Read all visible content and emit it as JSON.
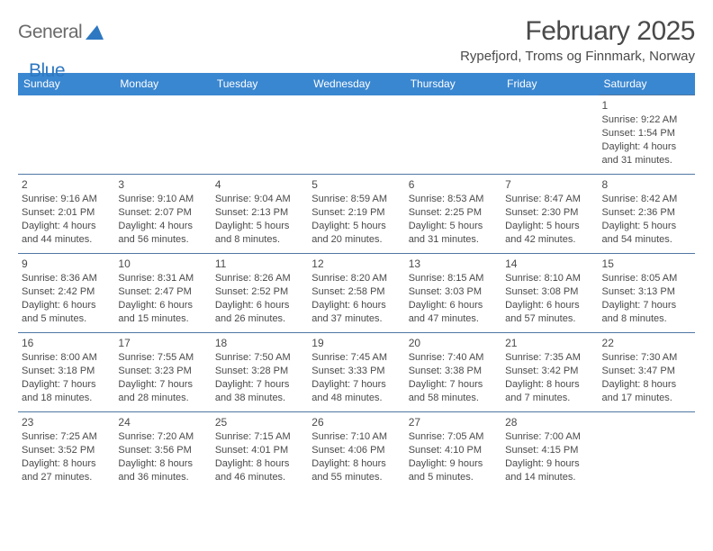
{
  "logo": {
    "text1": "General",
    "text2": "Blue"
  },
  "header": {
    "month_title": "February 2025",
    "location": "Rypefjord, Troms og Finnmark, Norway"
  },
  "colors": {
    "header_bg": "#3a87d1",
    "header_text": "#ffffff",
    "cell_border": "#4f77a4",
    "body_text": "#4a4a4a",
    "logo_gray": "#6a6a6a",
    "logo_blue": "#2e78c2",
    "page_bg": "#ffffff"
  },
  "weekdays": [
    "Sunday",
    "Monday",
    "Tuesday",
    "Wednesday",
    "Thursday",
    "Friday",
    "Saturday"
  ],
  "weeks": [
    [
      null,
      null,
      null,
      null,
      null,
      null,
      {
        "n": "1",
        "sr": "Sunrise: 9:22 AM",
        "ss": "Sunset: 1:54 PM",
        "d1": "Daylight: 4 hours",
        "d2": "and 31 minutes."
      }
    ],
    [
      {
        "n": "2",
        "sr": "Sunrise: 9:16 AM",
        "ss": "Sunset: 2:01 PM",
        "d1": "Daylight: 4 hours",
        "d2": "and 44 minutes."
      },
      {
        "n": "3",
        "sr": "Sunrise: 9:10 AM",
        "ss": "Sunset: 2:07 PM",
        "d1": "Daylight: 4 hours",
        "d2": "and 56 minutes."
      },
      {
        "n": "4",
        "sr": "Sunrise: 9:04 AM",
        "ss": "Sunset: 2:13 PM",
        "d1": "Daylight: 5 hours",
        "d2": "and 8 minutes."
      },
      {
        "n": "5",
        "sr": "Sunrise: 8:59 AM",
        "ss": "Sunset: 2:19 PM",
        "d1": "Daylight: 5 hours",
        "d2": "and 20 minutes."
      },
      {
        "n": "6",
        "sr": "Sunrise: 8:53 AM",
        "ss": "Sunset: 2:25 PM",
        "d1": "Daylight: 5 hours",
        "d2": "and 31 minutes."
      },
      {
        "n": "7",
        "sr": "Sunrise: 8:47 AM",
        "ss": "Sunset: 2:30 PM",
        "d1": "Daylight: 5 hours",
        "d2": "and 42 minutes."
      },
      {
        "n": "8",
        "sr": "Sunrise: 8:42 AM",
        "ss": "Sunset: 2:36 PM",
        "d1": "Daylight: 5 hours",
        "d2": "and 54 minutes."
      }
    ],
    [
      {
        "n": "9",
        "sr": "Sunrise: 8:36 AM",
        "ss": "Sunset: 2:42 PM",
        "d1": "Daylight: 6 hours",
        "d2": "and 5 minutes."
      },
      {
        "n": "10",
        "sr": "Sunrise: 8:31 AM",
        "ss": "Sunset: 2:47 PM",
        "d1": "Daylight: 6 hours",
        "d2": "and 15 minutes."
      },
      {
        "n": "11",
        "sr": "Sunrise: 8:26 AM",
        "ss": "Sunset: 2:52 PM",
        "d1": "Daylight: 6 hours",
        "d2": "and 26 minutes."
      },
      {
        "n": "12",
        "sr": "Sunrise: 8:20 AM",
        "ss": "Sunset: 2:58 PM",
        "d1": "Daylight: 6 hours",
        "d2": "and 37 minutes."
      },
      {
        "n": "13",
        "sr": "Sunrise: 8:15 AM",
        "ss": "Sunset: 3:03 PM",
        "d1": "Daylight: 6 hours",
        "d2": "and 47 minutes."
      },
      {
        "n": "14",
        "sr": "Sunrise: 8:10 AM",
        "ss": "Sunset: 3:08 PM",
        "d1": "Daylight: 6 hours",
        "d2": "and 57 minutes."
      },
      {
        "n": "15",
        "sr": "Sunrise: 8:05 AM",
        "ss": "Sunset: 3:13 PM",
        "d1": "Daylight: 7 hours",
        "d2": "and 8 minutes."
      }
    ],
    [
      {
        "n": "16",
        "sr": "Sunrise: 8:00 AM",
        "ss": "Sunset: 3:18 PM",
        "d1": "Daylight: 7 hours",
        "d2": "and 18 minutes."
      },
      {
        "n": "17",
        "sr": "Sunrise: 7:55 AM",
        "ss": "Sunset: 3:23 PM",
        "d1": "Daylight: 7 hours",
        "d2": "and 28 minutes."
      },
      {
        "n": "18",
        "sr": "Sunrise: 7:50 AM",
        "ss": "Sunset: 3:28 PM",
        "d1": "Daylight: 7 hours",
        "d2": "and 38 minutes."
      },
      {
        "n": "19",
        "sr": "Sunrise: 7:45 AM",
        "ss": "Sunset: 3:33 PM",
        "d1": "Daylight: 7 hours",
        "d2": "and 48 minutes."
      },
      {
        "n": "20",
        "sr": "Sunrise: 7:40 AM",
        "ss": "Sunset: 3:38 PM",
        "d1": "Daylight: 7 hours",
        "d2": "and 58 minutes."
      },
      {
        "n": "21",
        "sr": "Sunrise: 7:35 AM",
        "ss": "Sunset: 3:42 PM",
        "d1": "Daylight: 8 hours",
        "d2": "and 7 minutes."
      },
      {
        "n": "22",
        "sr": "Sunrise: 7:30 AM",
        "ss": "Sunset: 3:47 PM",
        "d1": "Daylight: 8 hours",
        "d2": "and 17 minutes."
      }
    ],
    [
      {
        "n": "23",
        "sr": "Sunrise: 7:25 AM",
        "ss": "Sunset: 3:52 PM",
        "d1": "Daylight: 8 hours",
        "d2": "and 27 minutes."
      },
      {
        "n": "24",
        "sr": "Sunrise: 7:20 AM",
        "ss": "Sunset: 3:56 PM",
        "d1": "Daylight: 8 hours",
        "d2": "and 36 minutes."
      },
      {
        "n": "25",
        "sr": "Sunrise: 7:15 AM",
        "ss": "Sunset: 4:01 PM",
        "d1": "Daylight: 8 hours",
        "d2": "and 46 minutes."
      },
      {
        "n": "26",
        "sr": "Sunrise: 7:10 AM",
        "ss": "Sunset: 4:06 PM",
        "d1": "Daylight: 8 hours",
        "d2": "and 55 minutes."
      },
      {
        "n": "27",
        "sr": "Sunrise: 7:05 AM",
        "ss": "Sunset: 4:10 PM",
        "d1": "Daylight: 9 hours",
        "d2": "and 5 minutes."
      },
      {
        "n": "28",
        "sr": "Sunrise: 7:00 AM",
        "ss": "Sunset: 4:15 PM",
        "d1": "Daylight: 9 hours",
        "d2": "and 14 minutes."
      },
      null
    ]
  ]
}
